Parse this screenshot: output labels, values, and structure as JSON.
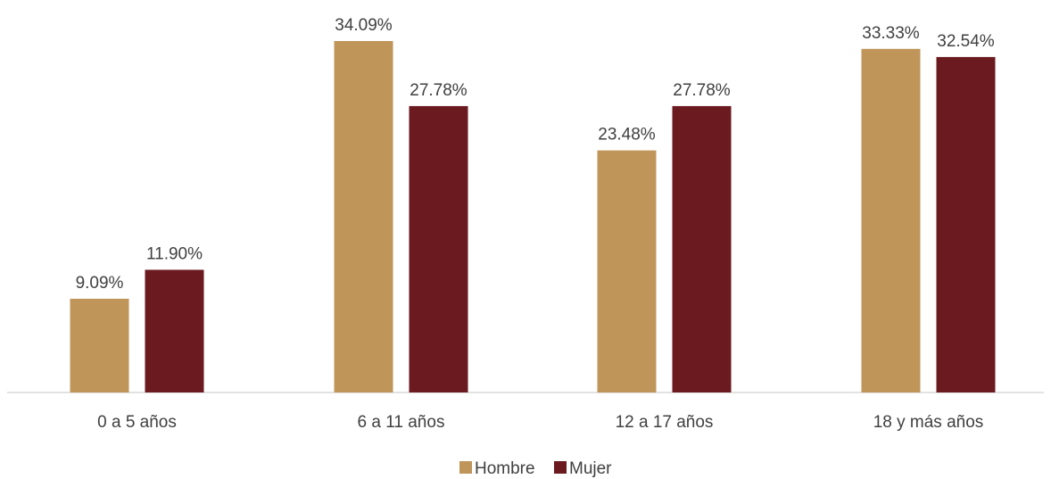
{
  "chart_data": {
    "type": "bar",
    "categories": [
      "0 a 5 años",
      "6 a 11 años",
      "12 a 17 años",
      "18 y más años"
    ],
    "series": [
      {
        "name": "Hombre",
        "values": [
          9.09,
          34.09,
          23.48,
          33.33
        ],
        "labels": [
          "9.09%",
          "34.09%",
          "23.48%",
          "33.33%"
        ],
        "color": "#bf955a"
      },
      {
        "name": "Mujer",
        "values": [
          11.9,
          27.78,
          27.78,
          32.54
        ],
        "labels": [
          "11.90%",
          "27.78%",
          "27.78%",
          "32.54%"
        ],
        "color": "#6b1a20"
      }
    ],
    "ylim": [
      0,
      34.09
    ],
    "grid": false,
    "legend": "bottom-center"
  }
}
